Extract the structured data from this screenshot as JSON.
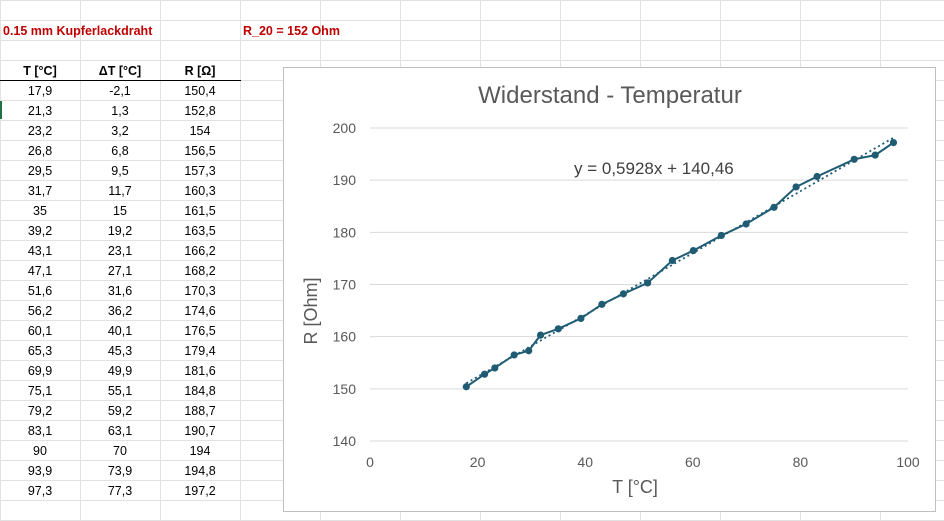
{
  "header": {
    "wire": "0.15 mm Kupferlackdraht",
    "r20": "R_20 = 152 Ohm"
  },
  "table": {
    "columns": [
      "T [°C]",
      "ΔT [°C]",
      "R [Ω]"
    ],
    "rows": [
      [
        "17,9",
        "-2,1",
        "150,4"
      ],
      [
        "21,3",
        "1,3",
        "152,8"
      ],
      [
        "23,2",
        "3,2",
        "154"
      ],
      [
        "26,8",
        "6,8",
        "156,5"
      ],
      [
        "29,5",
        "9,5",
        "157,3"
      ],
      [
        "31,7",
        "11,7",
        "160,3"
      ],
      [
        "35",
        "15",
        "161,5"
      ],
      [
        "39,2",
        "19,2",
        "163,5"
      ],
      [
        "43,1",
        "23,1",
        "166,2"
      ],
      [
        "47,1",
        "27,1",
        "168,2"
      ],
      [
        "51,6",
        "31,6",
        "170,3"
      ],
      [
        "56,2",
        "36,2",
        "174,6"
      ],
      [
        "60,1",
        "40,1",
        "176,5"
      ],
      [
        "65,3",
        "45,3",
        "179,4"
      ],
      [
        "69,9",
        "49,9",
        "181,6"
      ],
      [
        "75,1",
        "55,1",
        "184,8"
      ],
      [
        "79,2",
        "59,2",
        "188,7"
      ],
      [
        "83,1",
        "63,1",
        "190,7"
      ],
      [
        "90",
        "70",
        "194"
      ],
      [
        "93,9",
        "73,9",
        "194,8"
      ],
      [
        "97,3",
        "77,3",
        "197,2"
      ]
    ]
  },
  "chart_data": {
    "type": "scatter",
    "title": "Widerstand - Temperatur",
    "xlabel": "T [°C]",
    "ylabel": "R [Ohm]",
    "xlim": [
      0,
      100
    ],
    "ylim": [
      140,
      200
    ],
    "xticks": [
      0,
      20,
      40,
      60,
      80,
      100
    ],
    "yticks": [
      140,
      150,
      160,
      170,
      180,
      190,
      200
    ],
    "grid": true,
    "trendline": {
      "type": "linear",
      "slope": 0.5928,
      "intercept": 140.46,
      "label": "y = 0,5928x + 140,46"
    },
    "series": [
      {
        "x": [
          17.9,
          21.3,
          23.2,
          26.8,
          29.5,
          31.7,
          35,
          39.2,
          43.1,
          47.1,
          51.6,
          56.2,
          60.1,
          65.3,
          69.9,
          75.1,
          79.2,
          83.1,
          90,
          93.9,
          97.3
        ],
        "y": [
          150.4,
          152.8,
          154,
          156.5,
          157.3,
          160.3,
          161.5,
          163.5,
          166.2,
          168.2,
          170.3,
          174.6,
          176.5,
          179.4,
          181.6,
          184.8,
          188.7,
          190.7,
          194,
          194.8,
          197.2
        ]
      }
    ],
    "colors": {
      "series": "#1f5c74",
      "grid": "#d9d9d9",
      "text": "#595959"
    }
  }
}
